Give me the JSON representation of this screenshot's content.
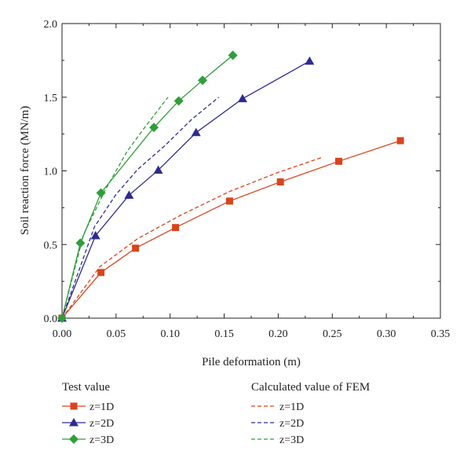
{
  "chart_data": {
    "type": "line",
    "xlabel": "Pile deformation (m)",
    "ylabel": "Soil reaction force (MN/m)",
    "xlim": [
      0,
      0.35
    ],
    "ylim": [
      0,
      2.0
    ],
    "xticks": [
      "0.00",
      "0.05",
      "0.10",
      "0.15",
      "0.20",
      "0.25",
      "0.30",
      "0.35"
    ],
    "yticks": [
      "0.0",
      "0.5",
      "1.0",
      "1.5",
      "2.0"
    ],
    "grid": false,
    "legend": {
      "placement": "bottom",
      "groups": [
        {
          "title": "Test value",
          "entries": [
            "z=1D",
            "z=2D",
            "z=3D"
          ]
        },
        {
          "title": "Calculated value of FEM",
          "entries": [
            "z=1D",
            "z=2D",
            "z=3D"
          ]
        }
      ]
    },
    "series": [
      {
        "name": "z=1D",
        "group": "Test value",
        "color": "#d9441c",
        "marker": "square",
        "dash": false,
        "x": [
          0,
          0.036,
          0.068,
          0.105,
          0.155,
          0.202,
          0.256,
          0.313
        ],
        "y": [
          0,
          0.31,
          0.475,
          0.615,
          0.795,
          0.925,
          1.065,
          1.205
        ]
      },
      {
        "name": "z=2D",
        "group": "Test value",
        "color": "#2e2b8f",
        "marker": "triangle",
        "dash": false,
        "x": [
          0,
          0.031,
          0.062,
          0.089,
          0.124,
          0.167,
          0.229
        ],
        "y": [
          0,
          0.56,
          0.835,
          1.005,
          1.26,
          1.49,
          1.745
        ]
      },
      {
        "name": "z=3D",
        "group": "Test value",
        "color": "#2f9e3b",
        "marker": "diamond",
        "dash": false,
        "x": [
          0,
          0.017,
          0.036,
          0.085,
          0.108,
          0.13,
          0.158
        ],
        "y": [
          0,
          0.51,
          0.85,
          1.295,
          1.475,
          1.615,
          1.785
        ]
      },
      {
        "name": "z=1D",
        "group": "Calculated value of FEM",
        "color": "#d9441c",
        "marker": "none",
        "dash": true,
        "x": [
          0,
          0.035,
          0.07,
          0.11,
          0.155,
          0.2,
          0.24
        ],
        "y": [
          0,
          0.35,
          0.54,
          0.7,
          0.86,
          0.99,
          1.09
        ]
      },
      {
        "name": "z=2D",
        "group": "Calculated value of FEM",
        "color": "#2e2b8f",
        "marker": "none",
        "dash": true,
        "x": [
          0,
          0.03,
          0.05,
          0.07,
          0.095,
          0.12,
          0.145
        ],
        "y": [
          0,
          0.62,
          0.84,
          1.01,
          1.17,
          1.35,
          1.5
        ]
      },
      {
        "name": "z=3D",
        "group": "Calculated value of FEM",
        "color": "#2f9e3b",
        "marker": "none",
        "dash": true,
        "x": [
          0,
          0.02,
          0.04,
          0.06,
          0.075,
          0.098
        ],
        "y": [
          0,
          0.57,
          0.87,
          1.13,
          1.28,
          1.5
        ]
      }
    ]
  }
}
